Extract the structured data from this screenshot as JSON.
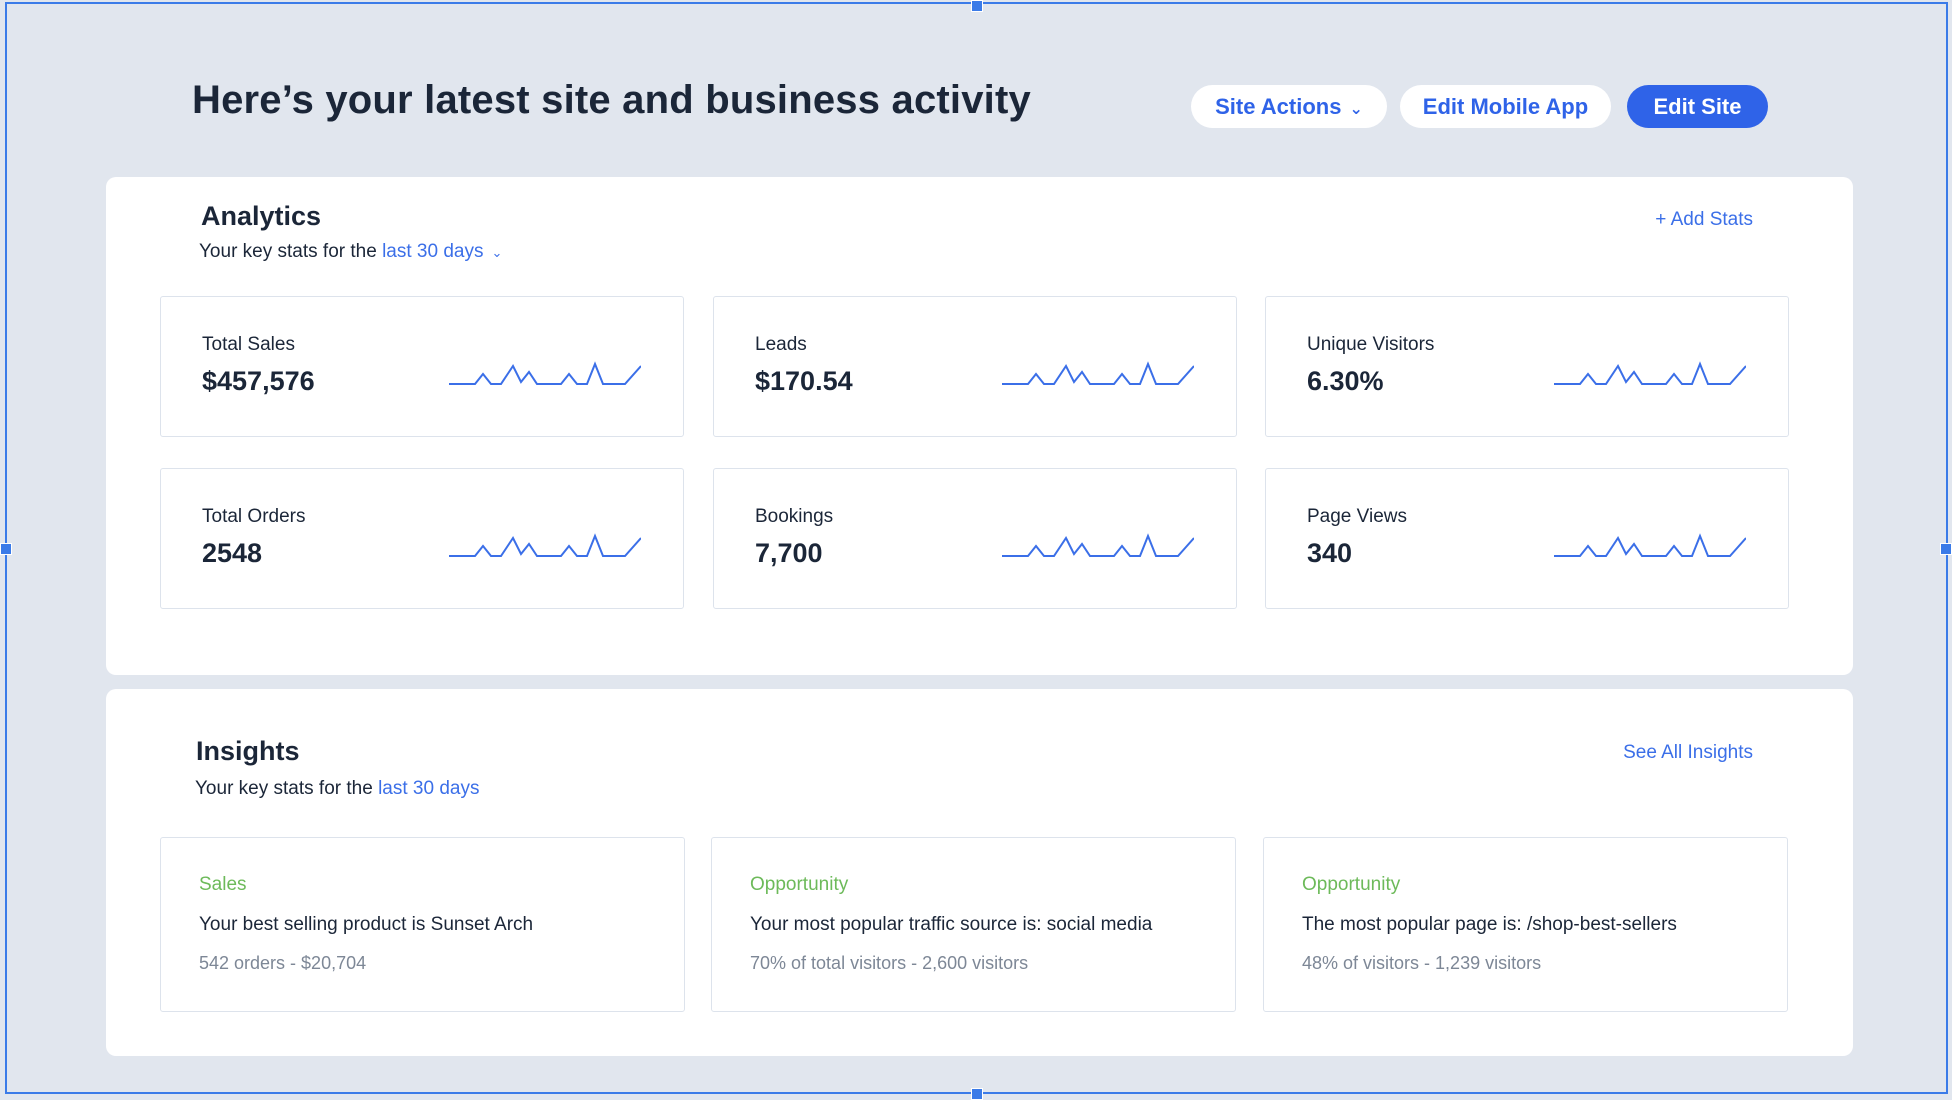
{
  "header": {
    "title": "Here’s your latest site and business activity",
    "site_actions_label": "Site Actions",
    "edit_mobile_app_label": "Edit Mobile App",
    "edit_site_label": "Edit Site"
  },
  "analytics": {
    "title": "Analytics",
    "subtitle_prefix": "Your key stats for the",
    "period": "last 30 days",
    "add_stats_label": "+ Add Stats",
    "cards": [
      {
        "label": "Total Sales",
        "value": "$457,576"
      },
      {
        "label": "Leads",
        "value": "$170.54"
      },
      {
        "label": "Unique Visitors",
        "value": "6.30%"
      },
      {
        "label": "Total Orders",
        "value": "2548"
      },
      {
        "label": "Bookings",
        "value": "7,700"
      },
      {
        "label": "Page Views",
        "value": "340"
      }
    ]
  },
  "insights": {
    "title": "Insights",
    "subtitle_prefix": "Your key stats for the",
    "period": "last 30 days",
    "see_all_label": "See All Insights",
    "cards": [
      {
        "category": "Sales",
        "message": "Your best selling product is Sunset  Arch",
        "meta": "542 orders - $20,704"
      },
      {
        "category": "Opportunity",
        "message": "Your most popular traffic source is: social media",
        "meta": "70% of total visitors - 2,600 visitors"
      },
      {
        "category": "Opportunity",
        "message": "The most popular page is: /shop-best-sellers",
        "meta": "48% of visitors - 1,239 visitors"
      }
    ]
  },
  "colors": {
    "accent": "#2f63e8",
    "background": "#e1e6ee",
    "insight_category": "#6dba5a",
    "selection_frame": "#3b7be8"
  },
  "icons": {
    "dropdown": "chevron-down-icon",
    "sparkline": "sparkline-icon"
  }
}
